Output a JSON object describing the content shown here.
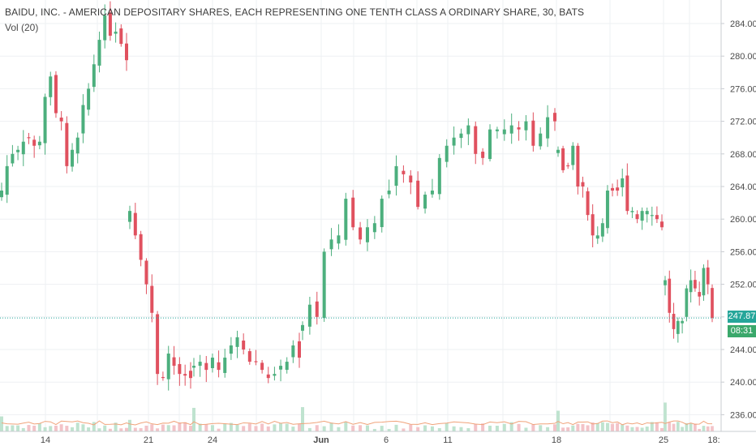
{
  "header": {
    "title": "BAIDU, INC. - AMERICAN DEPOSITARY SHARES, EACH REPRESENTING ONE TENTH CLASS A ORDINARY SHARE, 30, BATS",
    "volume_indicator": "Vol (20)"
  },
  "price_axis": {
    "labels": [
      "284.00",
      "280.00",
      "276.00",
      "272.00",
      "268.00",
      "264.00",
      "260.00",
      "256.00",
      "252.00",
      "248.00",
      "244.00",
      "240.00",
      "236.00"
    ]
  },
  "time_axis": {
    "labels": [
      "14",
      "21",
      "24",
      "Jun",
      "6",
      "11",
      "18",
      "25",
      "18:"
    ]
  },
  "last_price": {
    "value": "247.87",
    "countdown": "08:31"
  },
  "colors": {
    "up": "#4caf7d",
    "down": "#e0515f",
    "grid": "#eef0f3",
    "last_line": "#26a69a",
    "ma": "#f0a37a"
  },
  "chart_data": {
    "type": "candlestick",
    "ylim": [
      234.5,
      286
    ],
    "y_ticks": [
      284,
      280,
      276,
      272,
      268,
      264,
      260,
      256,
      252,
      248,
      244,
      240,
      236
    ],
    "x_labels": [
      "14",
      "21",
      "24",
      "Jun",
      "6",
      "11",
      "18",
      "25",
      "18:"
    ],
    "segments": [
      {
        "label": "14",
        "closes": [
          263.5,
          266.5,
          268,
          268.5,
          269.5,
          270,
          269,
          269.5,
          275,
          277.5,
          273,
          272,
          266.5,
          268.5,
          270,
          274,
          276,
          279,
          282,
          285,
          282.5,
          283,
          281.5,
          279.5
        ]
      },
      {
        "label": "21",
        "closes": [
          261,
          258,
          255,
          252,
          248.5,
          241,
          240.5,
          243.5,
          242,
          241,
          240.8,
          240.5
        ]
      },
      {
        "label": "24",
        "closes": [
          242,
          242.5,
          241.5,
          243,
          241.5,
          243,
          244.5,
          245.5,
          244,
          242.5,
          242.5,
          241.5,
          240.5,
          241,
          242,
          242.5,
          244.5,
          243
        ]
      },
      {
        "label": "Jun",
        "closes": [
          247,
          249.5,
          248,
          256,
          257.5,
          258,
          262.5,
          259,
          257.5,
          259,
          259.5,
          262.5,
          263.5,
          266.5,
          265.5,
          264.5,
          261.5,
          263,
          263.5,
          267.5,
          269,
          270,
          270.5,
          271.5,
          268,
          267.5,
          271,
          271,
          271,
          271.5,
          271,
          272,
          269,
          270.5,
          272.5,
          272
        ]
      },
      {
        "label": "18",
        "closes": [
          268.5,
          266,
          266.5,
          269,
          264,
          264,
          260.5,
          258,
          258,
          259.5,
          263.5,
          263.5,
          263.5,
          265,
          261,
          261,
          260,
          261,
          261,
          260.5,
          260,
          259
        ]
      },
      {
        "label": "25",
        "closes": [
          252.5,
          248.5,
          246.5,
          247.5,
          247.5,
          251.5,
          252.5,
          251.5,
          250.5,
          254,
          252,
          247.87
        ]
      }
    ]
  }
}
